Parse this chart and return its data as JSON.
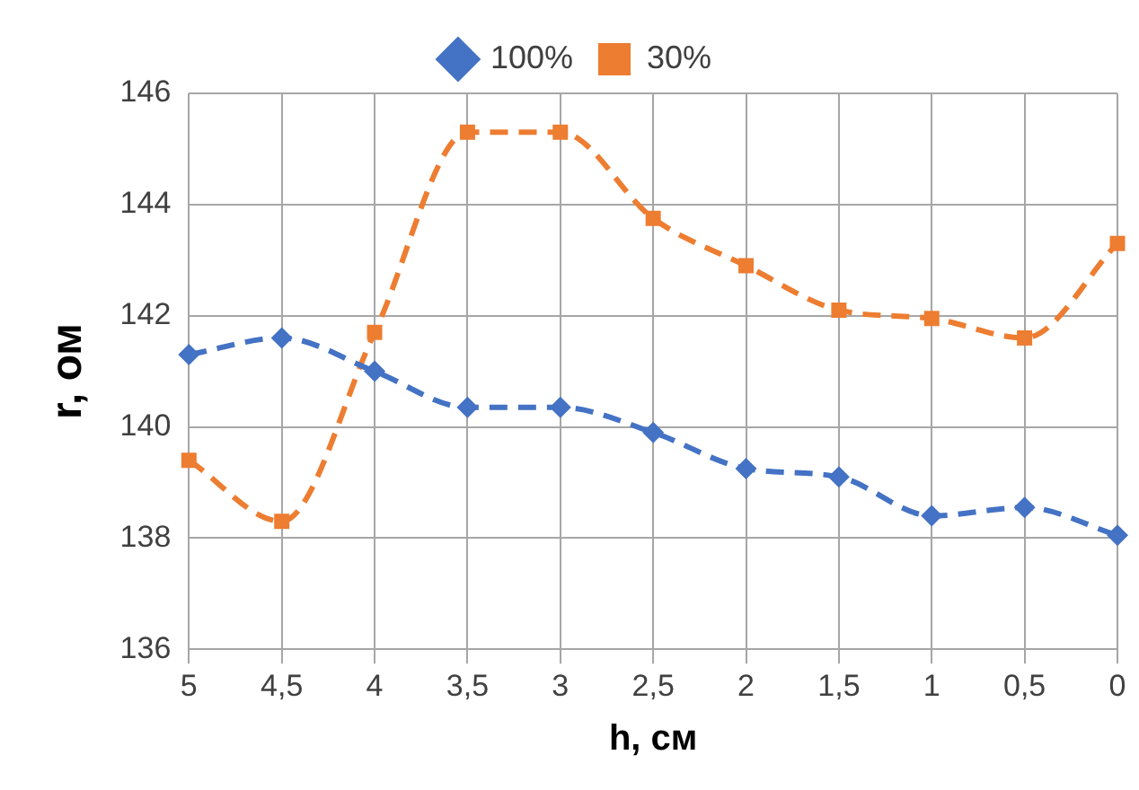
{
  "chart_data": {
    "type": "line",
    "xlabel": "h, см",
    "ylabel": "r, ом",
    "categories": [
      "5",
      "4,5",
      "4",
      "3,5",
      "3",
      "2,5",
      "2",
      "1,5",
      "1",
      "0,5",
      "0"
    ],
    "series": [
      {
        "name": "100%",
        "color": "#4472c4",
        "marker": "diamond",
        "values": [
          141.3,
          141.6,
          141.0,
          140.35,
          140.35,
          139.9,
          139.25,
          139.1,
          138.4,
          138.55,
          138.05
        ]
      },
      {
        "name": "30%",
        "color": "#ed7d31",
        "marker": "square",
        "values": [
          139.4,
          138.3,
          141.7,
          145.3,
          145.3,
          143.75,
          142.9,
          142.1,
          141.95,
          141.6,
          143.3
        ]
      }
    ],
    "ylim": [
      136,
      146
    ],
    "yticks": [
      136,
      138,
      140,
      142,
      144,
      146
    ],
    "grid": true,
    "legend": "top",
    "line_style": "dashed"
  }
}
